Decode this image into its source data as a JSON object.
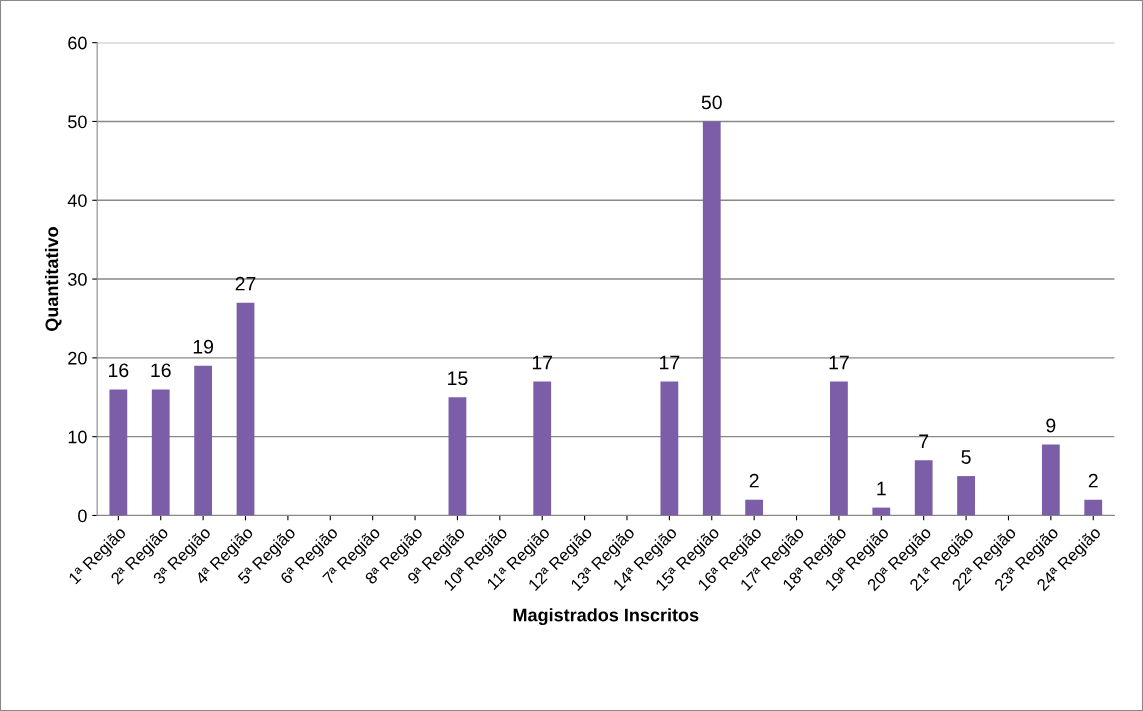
{
  "chart_data": {
    "type": "bar",
    "xlabel": "Magistrados Inscritos",
    "ylabel": "Quantitativo",
    "categories": [
      "1ª Região",
      "2ª Região",
      "3ª Região",
      "4ª Região",
      "5ª Região",
      "6ª Região",
      "7ª Região",
      "8ª Região",
      "9ª Região",
      "10ª Região",
      "11ª Região",
      "12ª Região",
      "13ª Região",
      "14ª Região",
      "15ª Região",
      "16ª Região",
      "17ª Região",
      "18ª Região",
      "19ª Região",
      "20ª Região",
      "21ª Região",
      "22ª Região",
      "23ª Região",
      "24ª Região"
    ],
    "values": [
      16,
      16,
      19,
      27,
      0,
      0,
      0,
      0,
      15,
      0,
      17,
      0,
      0,
      17,
      50,
      2,
      0,
      17,
      1,
      7,
      5,
      0,
      9,
      2
    ],
    "value_labels": [
      "16",
      "16",
      "19",
      "27",
      null,
      null,
      null,
      null,
      "15",
      null,
      "17",
      null,
      null,
      "17",
      "50",
      "2",
      null,
      "17",
      "1",
      "7",
      "5",
      null,
      "9",
      "2"
    ],
    "color": "#7b5ea7",
    "ylim": [
      0,
      60
    ],
    "yticks": [
      0,
      10,
      20,
      30,
      40,
      50,
      60
    ],
    "grid": "y",
    "legend": false
  }
}
